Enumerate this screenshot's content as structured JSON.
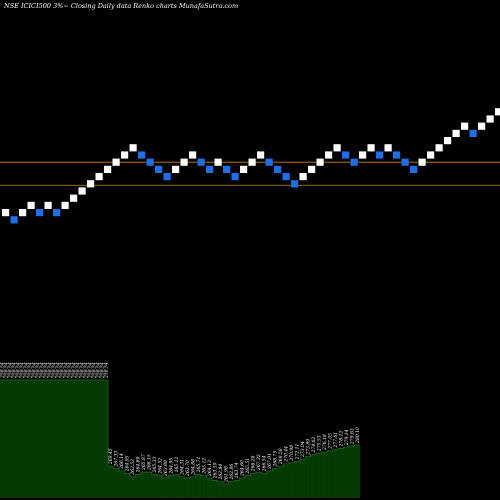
{
  "chart_data": [
    {
      "type": "renko",
      "title": "NSE ICICI500 3%~ Closing Daily data Renko charts MunafaSutra.com",
      "colors": {
        "background": "#000000",
        "up_brick": "#ffffff",
        "down_brick": "#1e6ee6",
        "reference_line": "#c8860a"
      },
      "bricks": [
        {
          "level": 0,
          "dir": "up"
        },
        {
          "level": -1,
          "dir": "down"
        },
        {
          "level": 0,
          "dir": "up"
        },
        {
          "level": 1,
          "dir": "up"
        },
        {
          "level": 0,
          "dir": "down"
        },
        {
          "level": 1,
          "dir": "up"
        },
        {
          "level": 0,
          "dir": "down"
        },
        {
          "level": 1,
          "dir": "up"
        },
        {
          "level": 2,
          "dir": "up"
        },
        {
          "level": 3,
          "dir": "up"
        },
        {
          "level": 4,
          "dir": "up"
        },
        {
          "level": 5,
          "dir": "up"
        },
        {
          "level": 6,
          "dir": "up"
        },
        {
          "level": 7,
          "dir": "up"
        },
        {
          "level": 8,
          "dir": "up"
        },
        {
          "level": 9,
          "dir": "up"
        },
        {
          "level": 8,
          "dir": "down"
        },
        {
          "level": 7,
          "dir": "down"
        },
        {
          "level": 6,
          "dir": "down"
        },
        {
          "level": 5,
          "dir": "down"
        },
        {
          "level": 6,
          "dir": "up"
        },
        {
          "level": 7,
          "dir": "up"
        },
        {
          "level": 8,
          "dir": "up"
        },
        {
          "level": 7,
          "dir": "down"
        },
        {
          "level": 6,
          "dir": "down"
        },
        {
          "level": 7,
          "dir": "up"
        },
        {
          "level": 6,
          "dir": "down"
        },
        {
          "level": 5,
          "dir": "down"
        },
        {
          "level": 6,
          "dir": "up"
        },
        {
          "level": 7,
          "dir": "up"
        },
        {
          "level": 8,
          "dir": "up"
        },
        {
          "level": 7,
          "dir": "down"
        },
        {
          "level": 6,
          "dir": "down"
        },
        {
          "level": 5,
          "dir": "down"
        },
        {
          "level": 4,
          "dir": "down"
        },
        {
          "level": 5,
          "dir": "up"
        },
        {
          "level": 6,
          "dir": "up"
        },
        {
          "level": 7,
          "dir": "up"
        },
        {
          "level": 8,
          "dir": "up"
        },
        {
          "level": 9,
          "dir": "up"
        },
        {
          "level": 8,
          "dir": "down"
        },
        {
          "level": 7,
          "dir": "down"
        },
        {
          "level": 8,
          "dir": "up"
        },
        {
          "level": 9,
          "dir": "up"
        },
        {
          "level": 8,
          "dir": "down"
        },
        {
          "level": 9,
          "dir": "up"
        },
        {
          "level": 8,
          "dir": "down"
        },
        {
          "level": 7,
          "dir": "down"
        },
        {
          "level": 6,
          "dir": "down"
        },
        {
          "level": 7,
          "dir": "up"
        },
        {
          "level": 8,
          "dir": "up"
        },
        {
          "level": 9,
          "dir": "up"
        },
        {
          "level": 10,
          "dir": "up"
        },
        {
          "level": 11,
          "dir": "up"
        },
        {
          "level": 12,
          "dir": "up"
        },
        {
          "level": 11,
          "dir": "down"
        },
        {
          "level": 12,
          "dir": "up"
        },
        {
          "level": 13,
          "dir": "up"
        },
        {
          "level": 14,
          "dir": "up"
        }
      ],
      "reference_lines": [
        {
          "level": 7.0
        },
        {
          "level": 3.8
        }
      ],
      "volume": [
        {
          "label": "258.54",
          "value": 1.0
        },
        {
          "label": "258.54",
          "value": 1.0
        },
        {
          "label": "258.54",
          "value": 1.0
        },
        {
          "label": "258.54",
          "value": 1.0
        },
        {
          "label": "258.54",
          "value": 1.0
        },
        {
          "label": "258.54",
          "value": 1.0
        },
        {
          "label": "258.54",
          "value": 1.0
        },
        {
          "label": "258.54",
          "value": 1.0
        },
        {
          "label": "258.54",
          "value": 1.0
        },
        {
          "label": "258.54",
          "value": 1.0
        },
        {
          "label": "258.54",
          "value": 1.0
        },
        {
          "label": "258.54",
          "value": 1.0
        },
        {
          "label": "258.54",
          "value": 1.0
        },
        {
          "label": "258.54",
          "value": 1.0
        },
        {
          "label": "258.54",
          "value": 1.0
        },
        {
          "label": "258.54",
          "value": 1.0
        },
        {
          "label": "258.54",
          "value": 1.0
        },
        {
          "label": "258.54",
          "value": 1.0
        },
        {
          "label": "258.54",
          "value": 1.0
        },
        {
          "label": "258.54",
          "value": 1.0
        },
        {
          "label": "258.54",
          "value": 1.0
        },
        {
          "label": "258.54",
          "value": 1.0
        },
        {
          "label": "258.54",
          "value": 1.0
        },
        {
          "label": "258.54",
          "value": 1.0
        },
        {
          "label": "258.54",
          "value": 1.0
        },
        {
          "label": "258.54",
          "value": 1.0
        },
        {
          "label": "258.54",
          "value": 1.0
        },
        {
          "label": "269.45",
          "value": 0.27
        },
        {
          "label": "267.33",
          "value": 0.25
        },
        {
          "label": "266.14",
          "value": 0.23
        },
        {
          "label": "264.95",
          "value": 0.21
        },
        {
          "label": "263.52",
          "value": 0.18
        },
        {
          "label": "264.89",
          "value": 0.2
        },
        {
          "label": "265.87",
          "value": 0.22
        },
        {
          "label": "266.15",
          "value": 0.22
        },
        {
          "label": "265.33",
          "value": 0.2
        },
        {
          "label": "264.52",
          "value": 0.19
        },
        {
          "label": "263.88",
          "value": 0.17
        },
        {
          "label": "264.95",
          "value": 0.19
        },
        {
          "label": "265.12",
          "value": 0.2
        },
        {
          "label": "264.31",
          "value": 0.18
        },
        {
          "label": "263.70",
          "value": 0.17
        },
        {
          "label": "264.88",
          "value": 0.18
        },
        {
          "label": "265.71",
          "value": 0.2
        },
        {
          "label": "265.12",
          "value": 0.19
        },
        {
          "label": "264.13",
          "value": 0.17
        },
        {
          "label": "263.59",
          "value": 0.15
        },
        {
          "label": "262.84",
          "value": 0.14
        },
        {
          "label": "261.98",
          "value": 0.12
        },
        {
          "label": "262.86",
          "value": 0.14
        },
        {
          "label": "263.74",
          "value": 0.15
        },
        {
          "label": "264.60",
          "value": 0.17
        },
        {
          "label": "265.51",
          "value": 0.19
        },
        {
          "label": "266.28",
          "value": 0.21
        },
        {
          "label": "267.32",
          "value": 0.22
        },
        {
          "label": "266.54",
          "value": 0.21
        },
        {
          "label": "267.91",
          "value": 0.23
        },
        {
          "label": "268.75",
          "value": 0.25
        },
        {
          "label": "269.58",
          "value": 0.27
        },
        {
          "label": "270.44",
          "value": 0.29
        },
        {
          "label": "270.98",
          "value": 0.3
        },
        {
          "label": "272.11",
          "value": 0.31
        },
        {
          "label": "273.04",
          "value": 0.33
        },
        {
          "label": "273.89",
          "value": 0.35
        },
        {
          "label": "274.62",
          "value": 0.37
        },
        {
          "label": "275.53",
          "value": 0.38
        },
        {
          "label": "276.18",
          "value": 0.39
        },
        {
          "label": "277.05",
          "value": 0.4
        },
        {
          "label": "277.61",
          "value": 0.41
        },
        {
          "label": "278.12",
          "value": 0.42
        },
        {
          "label": "279.14",
          "value": 0.43
        },
        {
          "label": "279.63",
          "value": 0.44
        },
        {
          "label": "280.10",
          "value": 0.45
        }
      ]
    }
  ]
}
